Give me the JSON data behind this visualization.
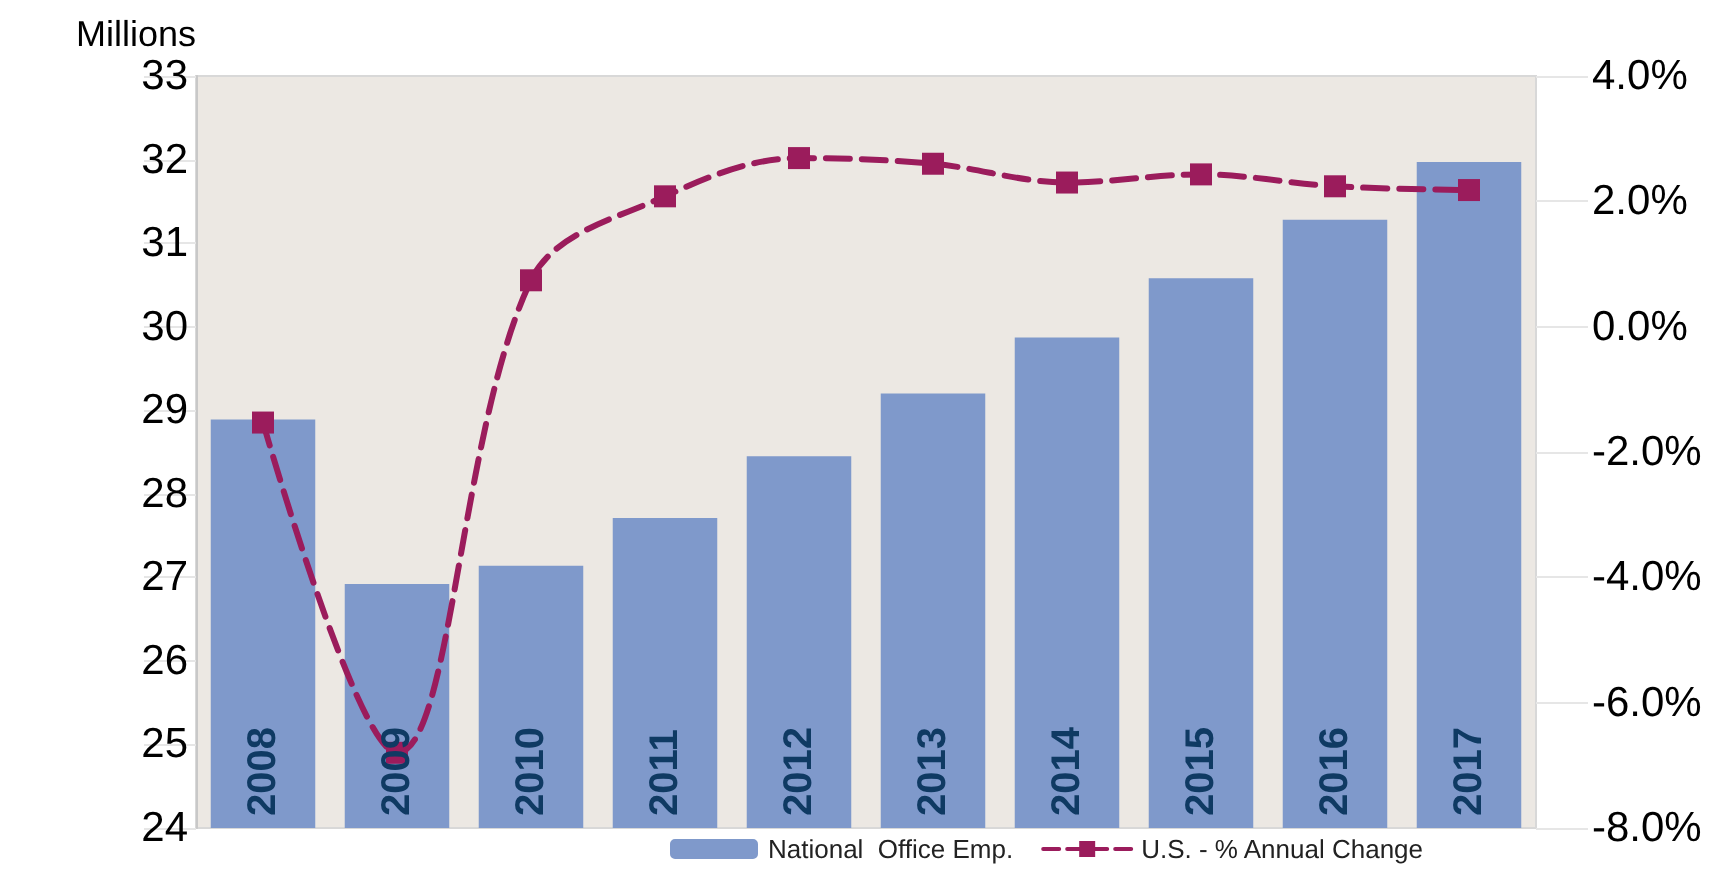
{
  "chart_data": {
    "type": "bar",
    "ylabel": "Millions",
    "categories": [
      "2008",
      "2009",
      "2010",
      "2011",
      "2012",
      "2013",
      "2014",
      "2015",
      "2016",
      "2017"
    ],
    "series": [
      {
        "name": "National  Office Emp.",
        "color": "#7f99cb",
        "values": [
          28.89,
          26.92,
          27.14,
          27.71,
          28.45,
          29.2,
          29.87,
          30.58,
          31.28,
          31.97
        ]
      },
      {
        "name": "U.S. - % Annual Change",
        "type": "line",
        "axis": "y2",
        "color": "#9b1c5c",
        "marker": "square",
        "line_style": "dashed",
        "values": [
          -1.53,
          -6.8,
          0.74,
          2.08,
          2.69,
          2.6,
          2.3,
          2.43,
          2.24,
          2.18
        ]
      }
    ],
    "ylim": [
      24,
      33
    ],
    "yticks": [
      24,
      25,
      26,
      27,
      28,
      29,
      30,
      31,
      32,
      33
    ],
    "y2lim": [
      -8,
      4
    ],
    "y2ticks": [
      {
        "value": -8,
        "label": "-8.0%"
      },
      {
        "value": -6,
        "label": "-6.0%"
      },
      {
        "value": -4,
        "label": "-4.0%"
      },
      {
        "value": -2,
        "label": "-2.0%"
      },
      {
        "value": 0,
        "label": "0.0%"
      },
      {
        "value": 2,
        "label": "2.0%"
      },
      {
        "value": 4,
        "label": "4.0%"
      }
    ],
    "grid": false,
    "legend": "bottom"
  }
}
